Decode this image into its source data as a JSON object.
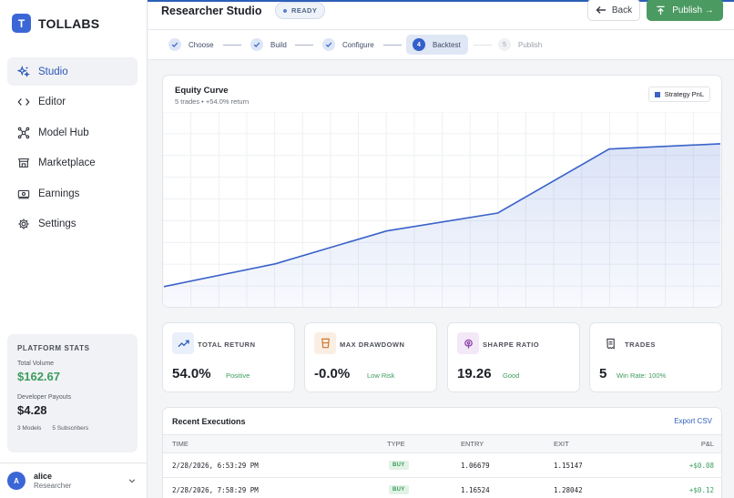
{
  "app": {
    "logo_letter": "T",
    "brand": "TOLLABS"
  },
  "sidebar": {
    "items": [
      {
        "label": "Studio",
        "icon": "sparkle-icon",
        "active": true
      },
      {
        "label": "Editor",
        "icon": "code-icon"
      },
      {
        "label": "Model Hub",
        "icon": "network-icon"
      },
      {
        "label": "Marketplace",
        "icon": "store-icon"
      },
      {
        "label": "Earnings",
        "icon": "money-icon"
      },
      {
        "label": "Settings",
        "icon": "gear-icon"
      }
    ],
    "stats": {
      "title": "PLATFORM STATS",
      "volume_label": "Total Volume",
      "volume_value": "$162.67",
      "payouts_label": "Developer Payouts",
      "payouts_value": "$4.28",
      "models": "3 Models",
      "subscribers": "5 Subscribers"
    },
    "user": {
      "initial": "A",
      "name": "alice",
      "role": "Researcher"
    }
  },
  "header": {
    "title": "Researcher Studio",
    "status": "READY",
    "back_label": "Back",
    "publish_label": "Publish →",
    "accent": "#4a9a62"
  },
  "stepper": {
    "steps": [
      {
        "label": "Choose",
        "state": "done"
      },
      {
        "label": "Build",
        "state": "done"
      },
      {
        "label": "Configure",
        "state": "done"
      },
      {
        "number": "4",
        "label": "Backtest",
        "state": "current"
      },
      {
        "number": "5",
        "label": "Publish",
        "state": "todo"
      }
    ]
  },
  "equity": {
    "title": "Equity Curve",
    "subtitle": "5 trades • +54.0% return",
    "legend": "Strategy PnL",
    "line_color": "#3b62c8"
  },
  "chart_data": {
    "type": "area",
    "title": "Equity Curve",
    "x": [
      0,
      1,
      2,
      3,
      4,
      5
    ],
    "series": [
      {
        "name": "Strategy PnL",
        "values": [
          100,
          108.6,
          121.0,
          127.8,
          152.0,
          154.0
        ]
      }
    ],
    "ylim": [
      92,
      166
    ],
    "grid": true,
    "legend_position": "top-right"
  },
  "metrics": [
    {
      "label": "TOTAL RETURN",
      "value": "54.0%",
      "badge": "Positive",
      "icon": "trend-up-icon",
      "icon_bg": "#eaf0fb",
      "icon_color": "#2d5fb8"
    },
    {
      "label": "MAX DRAWDOWN",
      "value": "-0.0%",
      "badge": "Low Risk",
      "icon": "cup-icon",
      "icon_bg": "#fbeee3",
      "icon_color": "#d0782e"
    },
    {
      "label": "SHARPE RATIO",
      "value": "19.26",
      "badge": "Good",
      "icon": "brain-icon",
      "icon_bg": "#f3e8f7",
      "icon_color": "#8a3fa6"
    },
    {
      "label": "TRADES",
      "value": "5",
      "badge": "Win Rate: 100%",
      "icon": "receipt-icon",
      "icon_bg": "#ffffff",
      "icon_color": "#3a3e46"
    }
  ],
  "executions": {
    "title": "Recent Executions",
    "export_label": "Export CSV",
    "columns": [
      "TIME",
      "TYPE",
      "ENTRY",
      "EXIT",
      "P&L"
    ],
    "rows": [
      {
        "time": "2/28/2026, 6:53:29 PM",
        "type": "BUY",
        "entry": "1.06679",
        "exit": "1.15147",
        "pnl": "+$0.08"
      },
      {
        "time": "2/28/2026, 7:58:29 PM",
        "type": "BUY",
        "entry": "1.16524",
        "exit": "1.28042",
        "pnl": "+$0.12"
      }
    ]
  }
}
